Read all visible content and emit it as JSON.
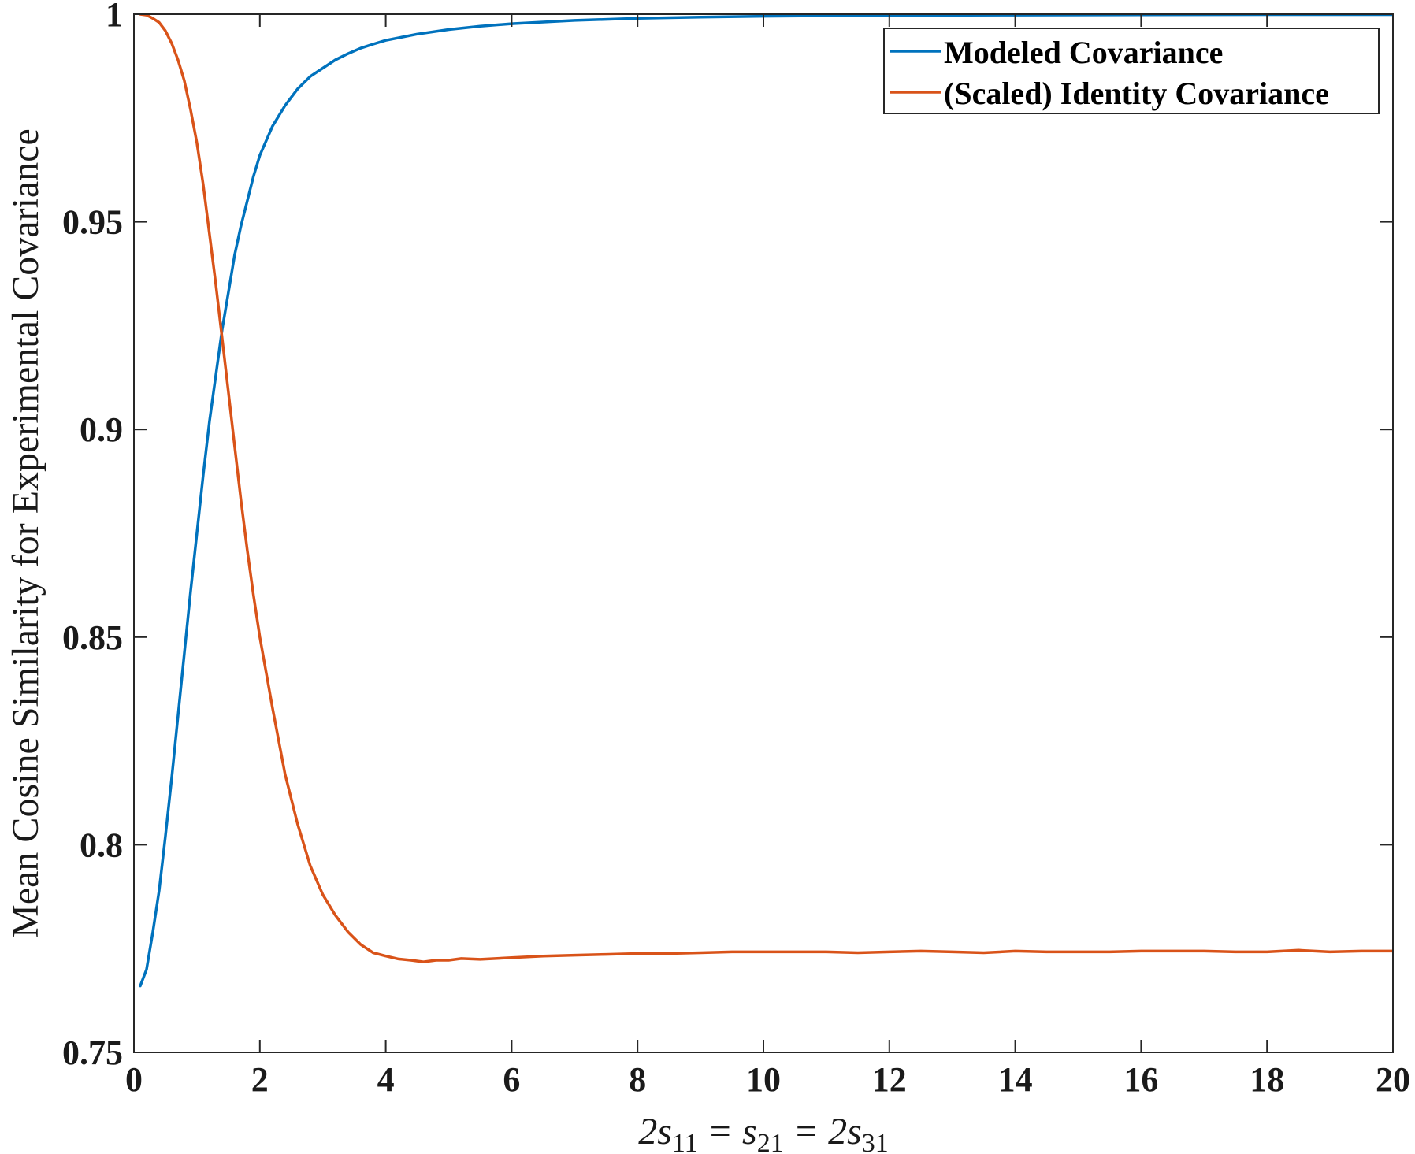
{
  "chart_data": {
    "type": "line",
    "xlabel": "2s₁₁ = s₂₁ = 2s₃₁",
    "ylabel": "Mean Cosine Similarity for Experimental Covariance",
    "xlim": [
      0,
      20
    ],
    "ylim": [
      0.75,
      1
    ],
    "xticks": [
      0,
      2,
      4,
      6,
      8,
      10,
      12,
      14,
      16,
      18,
      20
    ],
    "yticks": [
      0.75,
      0.8,
      0.85,
      0.9,
      0.95,
      1
    ],
    "xtick_labels": [
      "0",
      "2",
      "4",
      "6",
      "8",
      "10",
      "12",
      "14",
      "16",
      "18",
      "20"
    ],
    "ytick_labels": [
      "0.75",
      "0.8",
      "0.85",
      "0.9",
      "0.95",
      "1"
    ],
    "grid": false,
    "legend_position": "top-right",
    "series": [
      {
        "name": "Modeled Covariance",
        "color": "#0072BD",
        "points": [
          [
            0.1,
            0.766
          ],
          [
            0.2,
            0.77
          ],
          [
            0.3,
            0.779
          ],
          [
            0.4,
            0.789
          ],
          [
            0.5,
            0.802
          ],
          [
            0.6,
            0.816
          ],
          [
            0.7,
            0.831
          ],
          [
            0.8,
            0.846
          ],
          [
            0.9,
            0.861
          ],
          [
            1.0,
            0.875
          ],
          [
            1.1,
            0.889
          ],
          [
            1.2,
            0.902
          ],
          [
            1.3,
            0.913
          ],
          [
            1.4,
            0.924
          ],
          [
            1.5,
            0.933
          ],
          [
            1.6,
            0.942
          ],
          [
            1.7,
            0.949
          ],
          [
            1.8,
            0.955
          ],
          [
            1.9,
            0.961
          ],
          [
            2.0,
            0.966
          ],
          [
            2.2,
            0.973
          ],
          [
            2.4,
            0.978
          ],
          [
            2.6,
            0.982
          ],
          [
            2.8,
            0.985
          ],
          [
            3.0,
            0.987
          ],
          [
            3.2,
            0.989
          ],
          [
            3.4,
            0.9905
          ],
          [
            3.6,
            0.9918
          ],
          [
            3.8,
            0.9928
          ],
          [
            4.0,
            0.9937
          ],
          [
            4.5,
            0.9952
          ],
          [
            5.0,
            0.9963
          ],
          [
            5.5,
            0.9971
          ],
          [
            6.0,
            0.9977
          ],
          [
            7.0,
            0.9985
          ],
          [
            8.0,
            0.999
          ],
          [
            9.0,
            0.9993
          ],
          [
            10.0,
            0.9995
          ],
          [
            12.0,
            0.9997
          ],
          [
            14.0,
            0.9998
          ],
          [
            16.0,
            0.99985
          ],
          [
            18.0,
            0.9999
          ],
          [
            20.0,
            0.9999
          ]
        ]
      },
      {
        "name": "(Scaled) Identity Covariance",
        "color": "#D95319",
        "points": [
          [
            0.1,
            1.0
          ],
          [
            0.2,
            0.9998
          ],
          [
            0.3,
            0.999
          ],
          [
            0.4,
            0.998
          ],
          [
            0.5,
            0.996
          ],
          [
            0.6,
            0.993
          ],
          [
            0.7,
            0.989
          ],
          [
            0.8,
            0.984
          ],
          [
            0.9,
            0.977
          ],
          [
            1.0,
            0.969
          ],
          [
            1.1,
            0.959
          ],
          [
            1.2,
            0.947
          ],
          [
            1.3,
            0.935
          ],
          [
            1.4,
            0.922
          ],
          [
            1.5,
            0.909
          ],
          [
            1.6,
            0.896
          ],
          [
            1.7,
            0.883
          ],
          [
            1.8,
            0.871
          ],
          [
            1.9,
            0.86
          ],
          [
            2.0,
            0.85
          ],
          [
            2.2,
            0.833
          ],
          [
            2.4,
            0.817
          ],
          [
            2.6,
            0.805
          ],
          [
            2.8,
            0.795
          ],
          [
            3.0,
            0.788
          ],
          [
            3.2,
            0.783
          ],
          [
            3.4,
            0.779
          ],
          [
            3.6,
            0.776
          ],
          [
            3.8,
            0.774
          ],
          [
            4.0,
            0.7732
          ],
          [
            4.2,
            0.7725
          ],
          [
            4.4,
            0.7722
          ],
          [
            4.6,
            0.7718
          ],
          [
            4.8,
            0.7722
          ],
          [
            5.0,
            0.7722
          ],
          [
            5.2,
            0.7726
          ],
          [
            5.5,
            0.7724
          ],
          [
            6.0,
            0.7728
          ],
          [
            6.5,
            0.7732
          ],
          [
            7.0,
            0.7734
          ],
          [
            7.5,
            0.7736
          ],
          [
            8.0,
            0.7738
          ],
          [
            8.5,
            0.7738
          ],
          [
            9.0,
            0.774
          ],
          [
            9.5,
            0.7742
          ],
          [
            10.0,
            0.7742
          ],
          [
            10.5,
            0.7742
          ],
          [
            11.0,
            0.7742
          ],
          [
            11.5,
            0.774
          ],
          [
            12.0,
            0.7742
          ],
          [
            12.5,
            0.7744
          ],
          [
            13.0,
            0.7742
          ],
          [
            13.5,
            0.774
          ],
          [
            14.0,
            0.7744
          ],
          [
            14.5,
            0.7742
          ],
          [
            15.0,
            0.7742
          ],
          [
            15.5,
            0.7742
          ],
          [
            16.0,
            0.7744
          ],
          [
            16.5,
            0.7744
          ],
          [
            17.0,
            0.7744
          ],
          [
            17.5,
            0.7742
          ],
          [
            18.0,
            0.7742
          ],
          [
            18.5,
            0.7746
          ],
          [
            19.0,
            0.7742
          ],
          [
            19.5,
            0.7744
          ],
          [
            20.0,
            0.7744
          ]
        ]
      }
    ]
  }
}
